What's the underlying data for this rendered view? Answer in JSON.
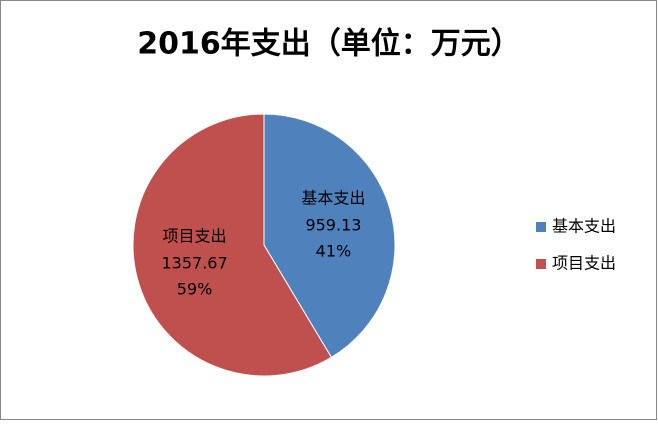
{
  "chart_data": {
    "type": "pie",
    "title": "2016年支出（单位：万元）",
    "categories": [
      "基本支出",
      "项目支出"
    ],
    "values": [
      959.13,
      1357.67
    ],
    "percent_labels": [
      "41%",
      "59%"
    ],
    "colors": [
      "#4f81bd",
      "#c0504d"
    ],
    "legend": "right"
  }
}
